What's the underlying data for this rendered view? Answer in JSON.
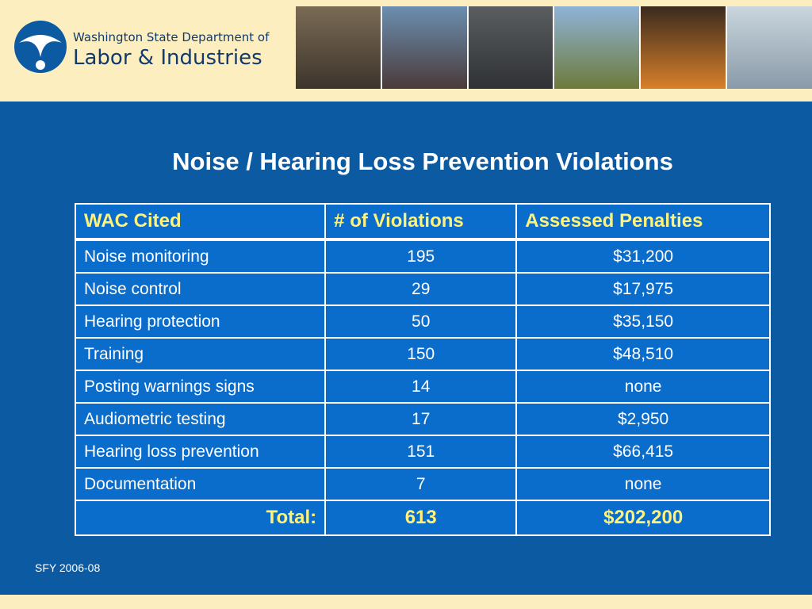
{
  "header": {
    "org_line1": "Washington State Department of",
    "org_line2": "Labor & Industries"
  },
  "title": "Noise / Hearing Loss Prevention Violations",
  "table": {
    "columns": [
      "WAC Cited",
      "# of Violations",
      "Assessed Penalties"
    ],
    "rows": [
      [
        "Noise monitoring",
        195,
        "$31,200"
      ],
      [
        "Noise control",
        29,
        "$17,975"
      ],
      [
        "Hearing protection",
        50,
        "$35,150"
      ],
      [
        "Training",
        150,
        "$48,510"
      ],
      [
        "Posting warnings signs",
        14,
        "none"
      ],
      [
        "Audiometric testing",
        17,
        "$2,950"
      ],
      [
        "Hearing loss prevention",
        151,
        "$66,415"
      ],
      [
        "Documentation",
        7,
        "none"
      ]
    ],
    "total": [
      "Total:",
      613,
      "$202,200"
    ]
  },
  "footnote": "SFY 2006-08"
}
